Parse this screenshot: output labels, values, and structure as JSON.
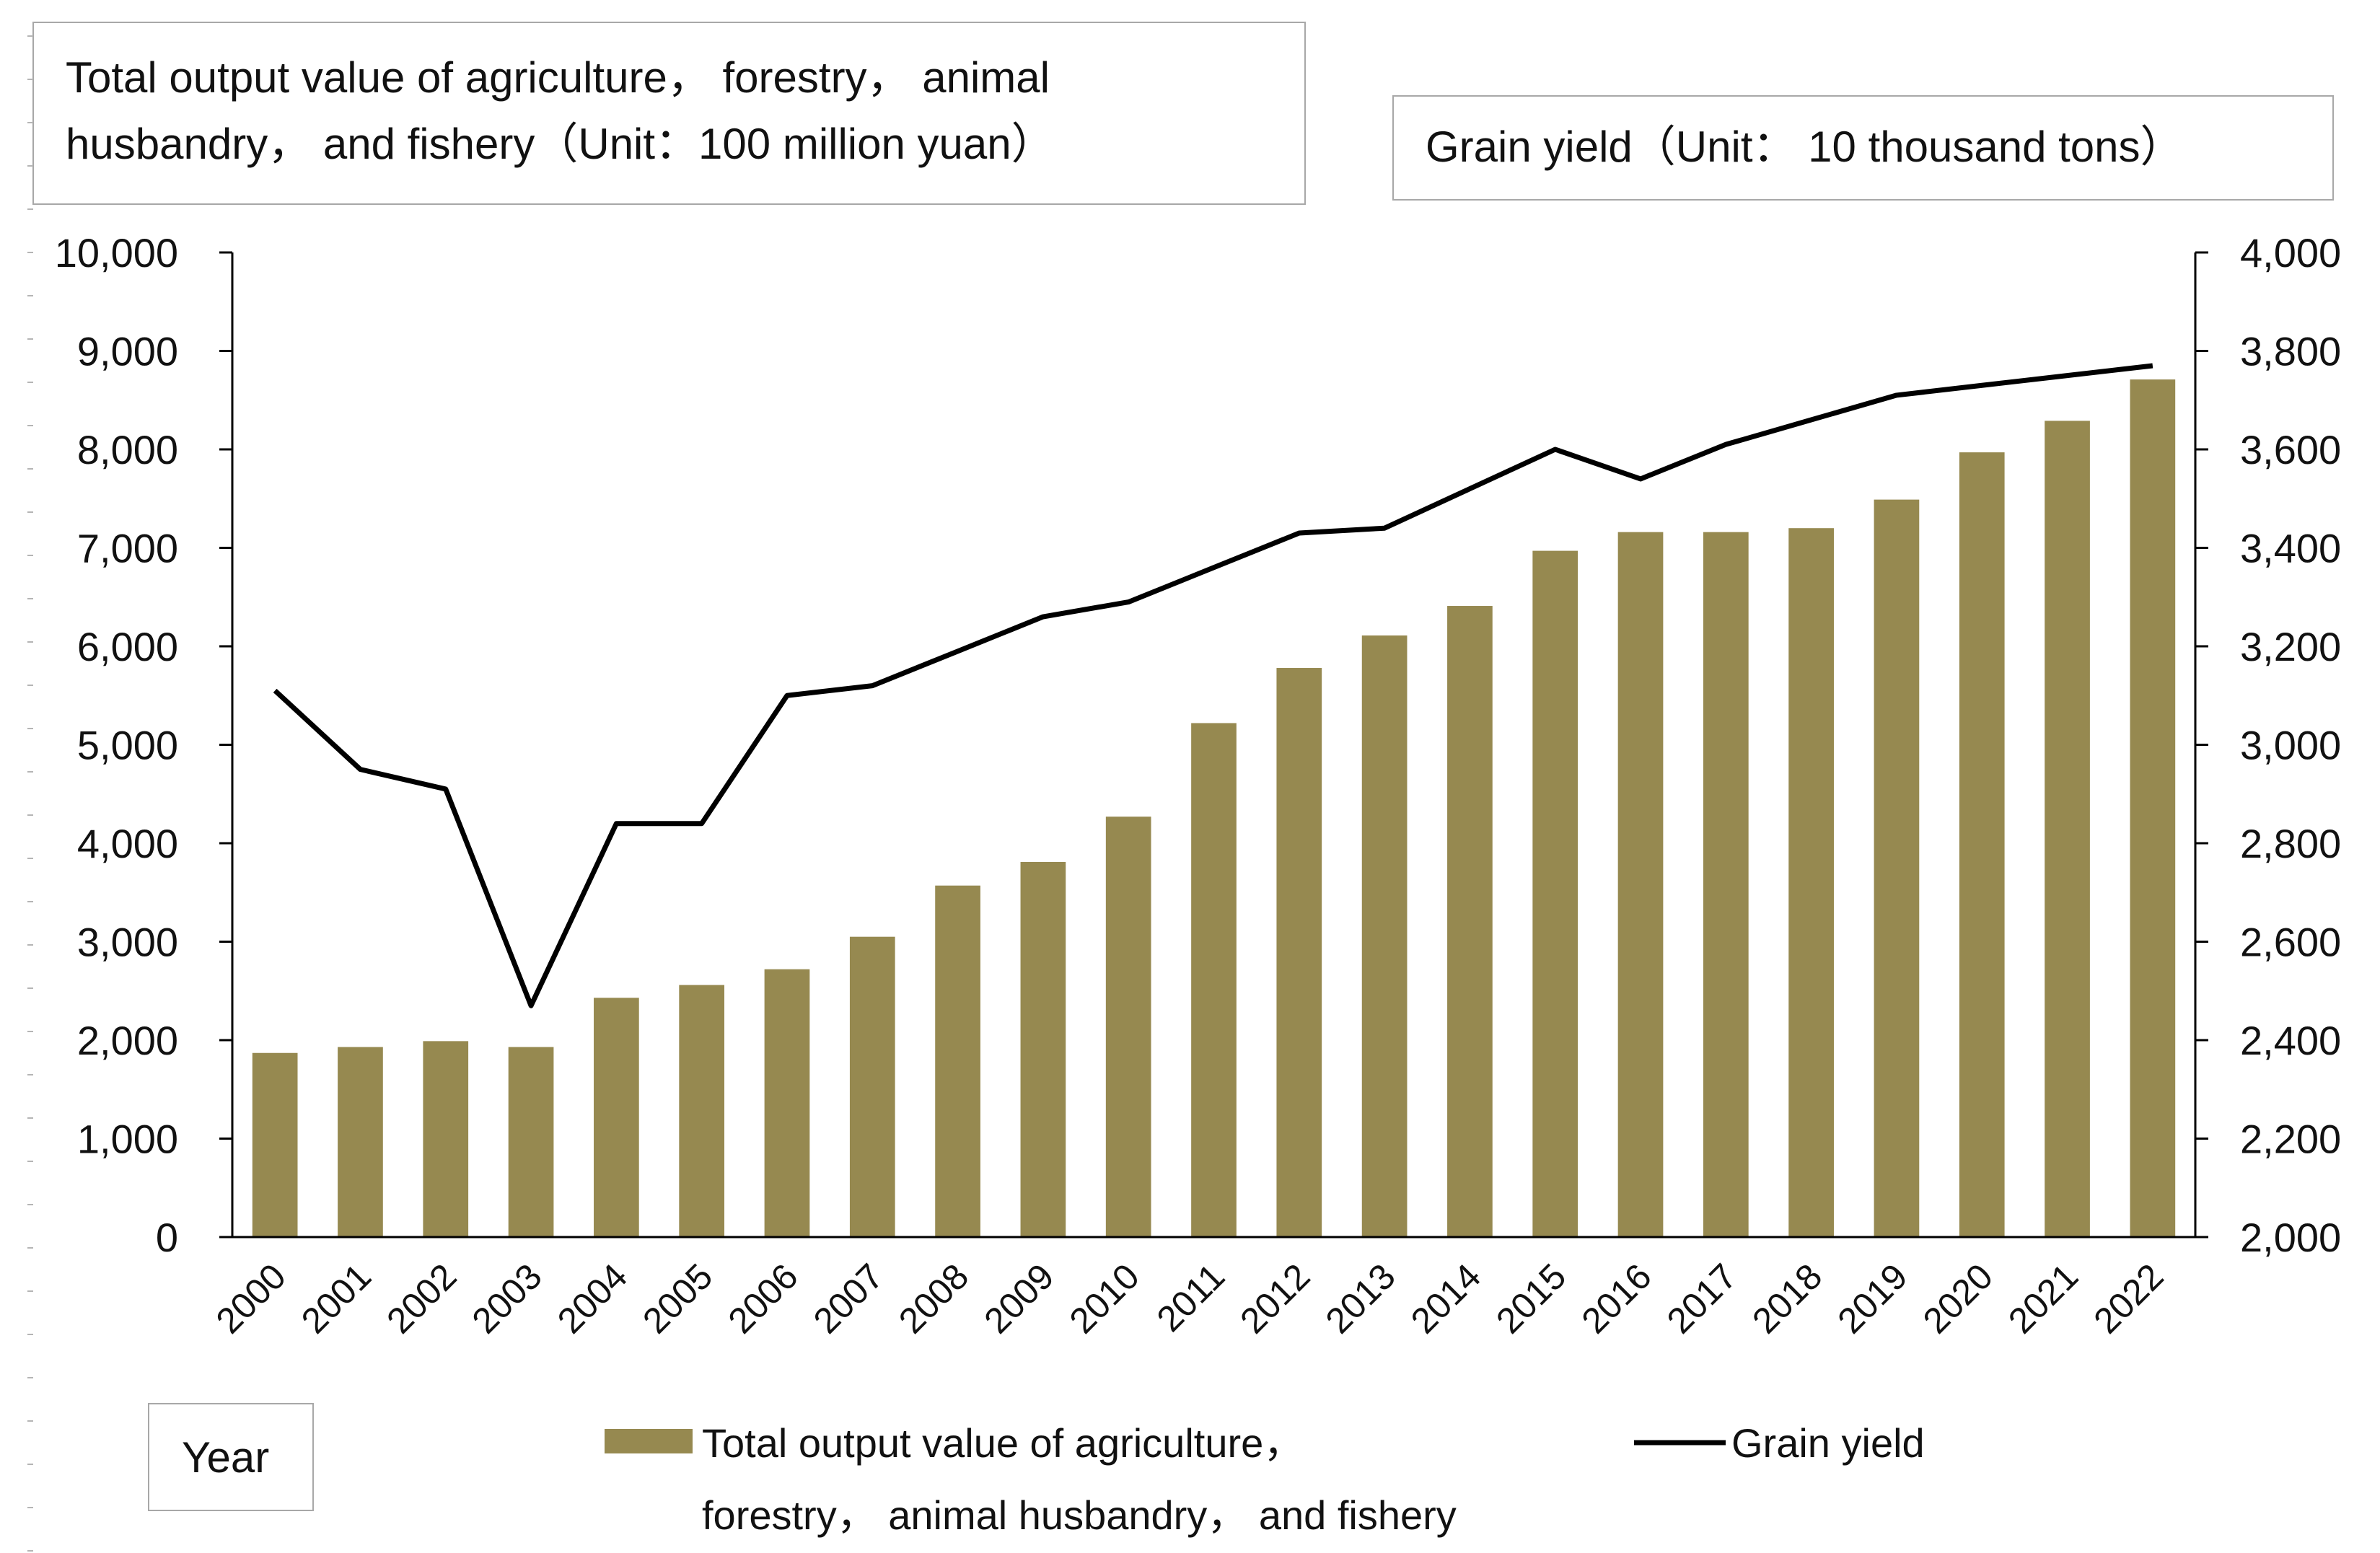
{
  "chart_data": {
    "type": "bar+line",
    "left_title": "Total output value of agriculture， forestry， animal husbandry， and fishery（Unit：100 million yuan）",
    "left_title_lines": [
      "Total output value of agriculture， forestry， animal",
      "husbandry， and fishery（Unit：100 million yuan）"
    ],
    "right_title": "Grain yield（Unit： 10 thousand tons）",
    "xlabel": "Year",
    "categories": [
      "2000",
      "2001",
      "2002",
      "2003",
      "2004",
      "2005",
      "2006",
      "2007",
      "2008",
      "2009",
      "2010",
      "2011",
      "2012",
      "2013",
      "2014",
      "2015",
      "2016",
      "2017",
      "2018",
      "2019",
      "2020",
      "2021",
      "2022"
    ],
    "left_axis": {
      "ylim": [
        0,
        10000
      ],
      "ticks": [
        0,
        1000,
        2000,
        3000,
        4000,
        5000,
        6000,
        7000,
        8000,
        9000,
        10000
      ],
      "tick_labels": [
        "0",
        "1,000",
        "2,000",
        "3,000",
        "4,000",
        "5,000",
        "6,000",
        "7,000",
        "8,000",
        "9,000",
        "10,000"
      ]
    },
    "right_axis": {
      "ylim": [
        2000,
        4000
      ],
      "ticks": [
        2000,
        2200,
        2400,
        2600,
        2800,
        3000,
        3200,
        3400,
        3600,
        3800,
        4000
      ],
      "tick_labels": [
        "2,000",
        "2,200",
        "2,400",
        "2,600",
        "2,800",
        "3,000",
        "3,200",
        "3,400",
        "3,600",
        "3,800",
        "4,000"
      ]
    },
    "series": [
      {
        "name": "Total output value of agriculture， forestry， animal husbandry， and fishery",
        "legend_lines": [
          "Total output value of agriculture，",
          "forestry， animal husbandry， and fishery"
        ],
        "type": "bar",
        "axis": "left",
        "color": "#968950",
        "values": [
          1870,
          1930,
          1990,
          1930,
          2430,
          2560,
          2720,
          3050,
          3570,
          3810,
          4270,
          5220,
          5780,
          6110,
          6410,
          6970,
          7160,
          7160,
          7200,
          7490,
          7970,
          8290,
          8710
        ]
      },
      {
        "name": "Grain yield",
        "type": "line",
        "axis": "right",
        "color": "#000000",
        "values": [
          3110,
          2950,
          2910,
          2470,
          2840,
          2840,
          3100,
          3120,
          3190,
          3260,
          3290,
          3360,
          3430,
          3440,
          3520,
          3600,
          3540,
          3610,
          3660,
          3710,
          3730,
          3750,
          3770
        ]
      }
    ]
  }
}
